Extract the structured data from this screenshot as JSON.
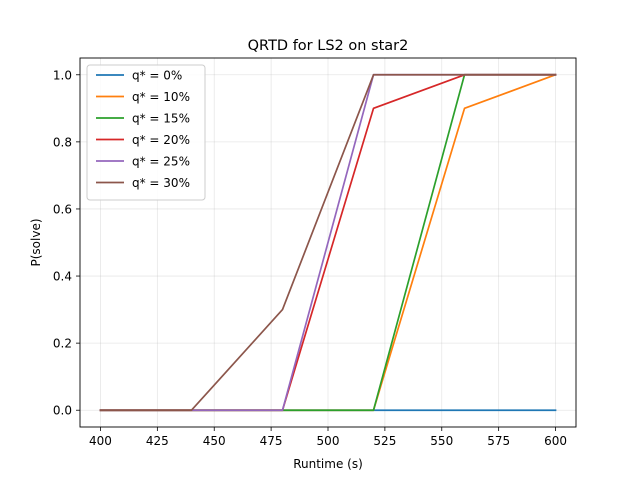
{
  "chart_data": {
    "type": "line",
    "title": "QRTD for LS2 on star2",
    "xlabel": "Runtime (s)",
    "ylabel": "P(solve)",
    "xlim": [
      391,
      609
    ],
    "ylim": [
      -0.05,
      1.05
    ],
    "xticks": [
      400,
      425,
      450,
      475,
      500,
      525,
      550,
      575,
      600
    ],
    "yticks": [
      0.0,
      0.2,
      0.4,
      0.6,
      0.8,
      1.0
    ],
    "xtick_labels": [
      "400",
      "425",
      "450",
      "475",
      "500",
      "525",
      "550",
      "575",
      "600"
    ],
    "ytick_labels": [
      "0.0",
      "0.2",
      "0.4",
      "0.6",
      "0.8",
      "1.0"
    ],
    "grid": true,
    "legend_position": "upper-left",
    "x": [
      400,
      440,
      480,
      520,
      560,
      600
    ],
    "series": [
      {
        "name": "q* = 0%",
        "color": "#1f77b4",
        "values": [
          0,
          0,
          0,
          0,
          0,
          0
        ]
      },
      {
        "name": "q* = 10%",
        "color": "#ff7f0e",
        "values": [
          0,
          0,
          0,
          0,
          0.9,
          1.0
        ]
      },
      {
        "name": "q* = 15%",
        "color": "#2ca02c",
        "values": [
          0,
          0,
          0,
          0,
          1.0,
          1.0
        ]
      },
      {
        "name": "q* = 20%",
        "color": "#d62728",
        "values": [
          0,
          0,
          0,
          0.9,
          1.0,
          1.0
        ]
      },
      {
        "name": "q* = 25%",
        "color": "#9467bd",
        "values": [
          0,
          0,
          0,
          1.0,
          1.0,
          1.0
        ]
      },
      {
        "name": "q* = 30%",
        "color": "#8c564b",
        "values": [
          0,
          0,
          0.3,
          1.0,
          1.0,
          1.0
        ]
      }
    ]
  }
}
